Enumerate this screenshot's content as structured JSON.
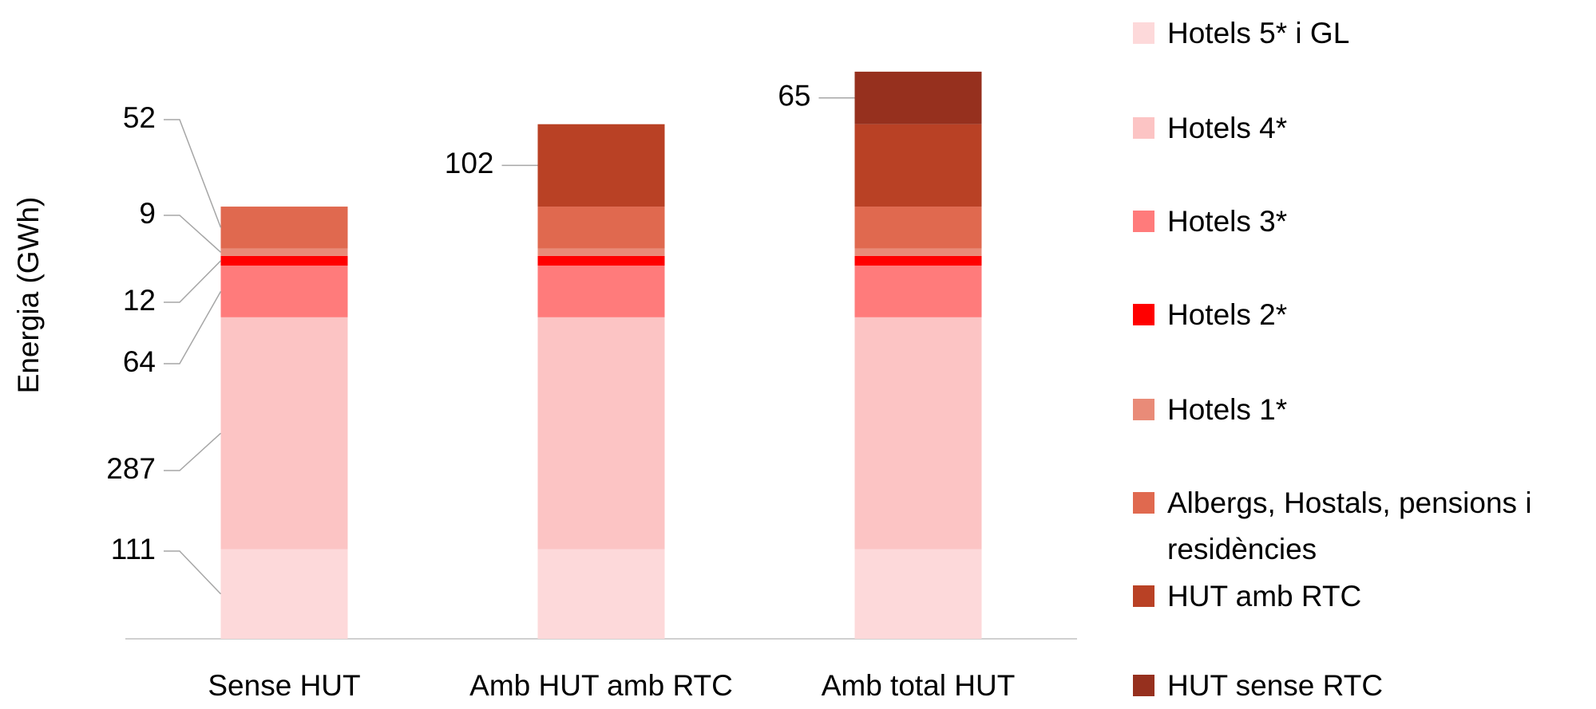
{
  "chart_data": {
    "type": "stacked_bar",
    "y_label": "Energia (GWh)",
    "categories": [
      "Sense HUT",
      "Amb HUT amb RTC",
      "Amb total HUT"
    ],
    "series": [
      {
        "name": "Hotels 5* i GL",
        "color": "#fdd9da",
        "values": [
          111,
          111,
          111
        ]
      },
      {
        "name": "Hotels 4*",
        "color": "#fcc4c4",
        "values": [
          287,
          287,
          287
        ]
      },
      {
        "name": "Hotels 3*",
        "color": "#ff7b7b",
        "values": [
          64,
          64,
          64
        ]
      },
      {
        "name": "Hotels 2*",
        "color": "#ff0000",
        "values": [
          12,
          12,
          12
        ]
      },
      {
        "name": "Hotels 1*",
        "color": "#e98b78",
        "values": [
          9,
          9,
          9
        ]
      },
      {
        "name": "Albergs, Hostals, pensions i residències",
        "color": "#e0694f",
        "values": [
          52,
          52,
          52
        ]
      },
      {
        "name": "HUT amb RTC",
        "color": "#b94125",
        "values": [
          null,
          102,
          102
        ]
      },
      {
        "name": "HUT sense RTC",
        "color": "#96301e",
        "values": [
          null,
          null,
          65
        ]
      }
    ]
  }
}
